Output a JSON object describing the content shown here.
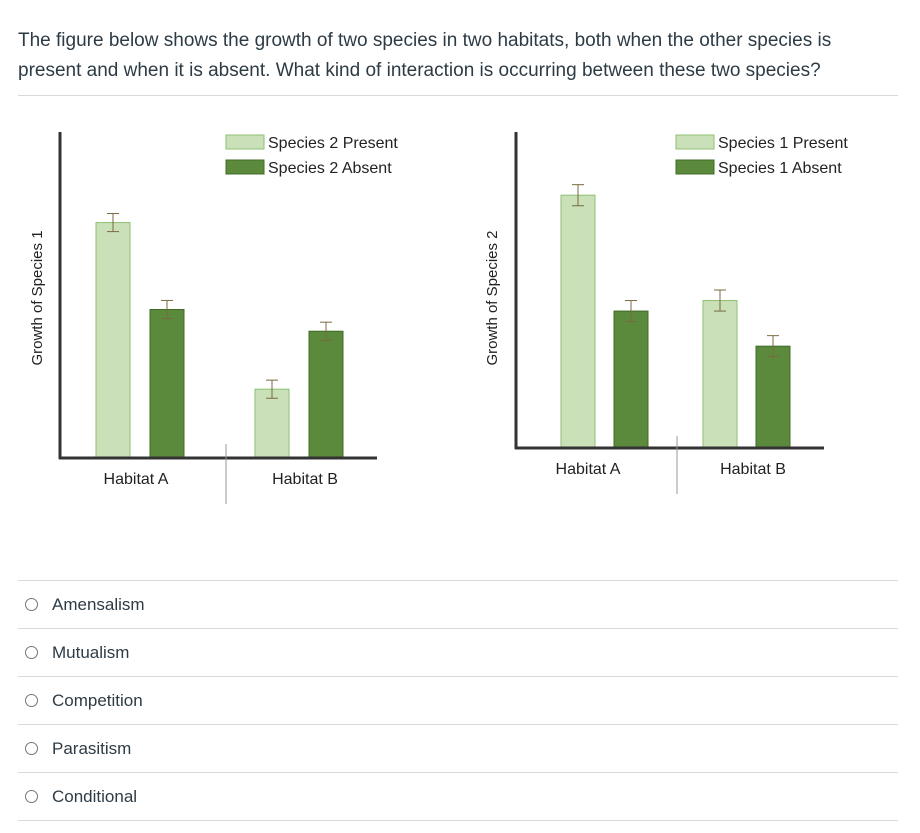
{
  "question": {
    "text": "The figure below shows the growth of two species in two habitats, both when the other species is present and when it is absent. What kind of interaction is occurring between these two species?"
  },
  "colors": {
    "present_fill": "#c9e0b8",
    "present_stroke": "#8fbf72",
    "absent_fill": "#5c8a3c",
    "absent_stroke": "#3f6b27",
    "axis": "#333333",
    "error_bar": "#7a6a40"
  },
  "chart_data": [
    {
      "type": "bar",
      "title": "",
      "xlabel": "",
      "ylabel": "Growth of Species 1",
      "categories": [
        "Habitat A",
        "Habitat B"
      ],
      "series": [
        {
          "name": "Species 2 Present",
          "values": [
            65,
            19
          ],
          "errors": [
            2.5,
            2.5
          ]
        },
        {
          "name": "Species 2 Absent",
          "values": [
            41,
            35
          ],
          "errors": [
            2.5,
            2.5
          ]
        }
      ],
      "ylim": [
        0,
        90
      ],
      "legend": "top-right",
      "grid": false
    },
    {
      "type": "bar",
      "title": "",
      "xlabel": "",
      "ylabel": "Growth of Species 2",
      "categories": [
        "Habitat A",
        "Habitat B"
      ],
      "series": [
        {
          "name": "Species 1 Present",
          "values": [
            72,
            42
          ],
          "errors": [
            3,
            3
          ]
        },
        {
          "name": "Species 1 Absent",
          "values": [
            39,
            29
          ],
          "errors": [
            3,
            3
          ]
        }
      ],
      "ylim": [
        0,
        90
      ],
      "legend": "top-right",
      "grid": false
    }
  ],
  "answers": [
    {
      "label": "Amensalism"
    },
    {
      "label": "Mutualism"
    },
    {
      "label": "Competition"
    },
    {
      "label": "Parasitism"
    },
    {
      "label": "Conditional"
    }
  ]
}
